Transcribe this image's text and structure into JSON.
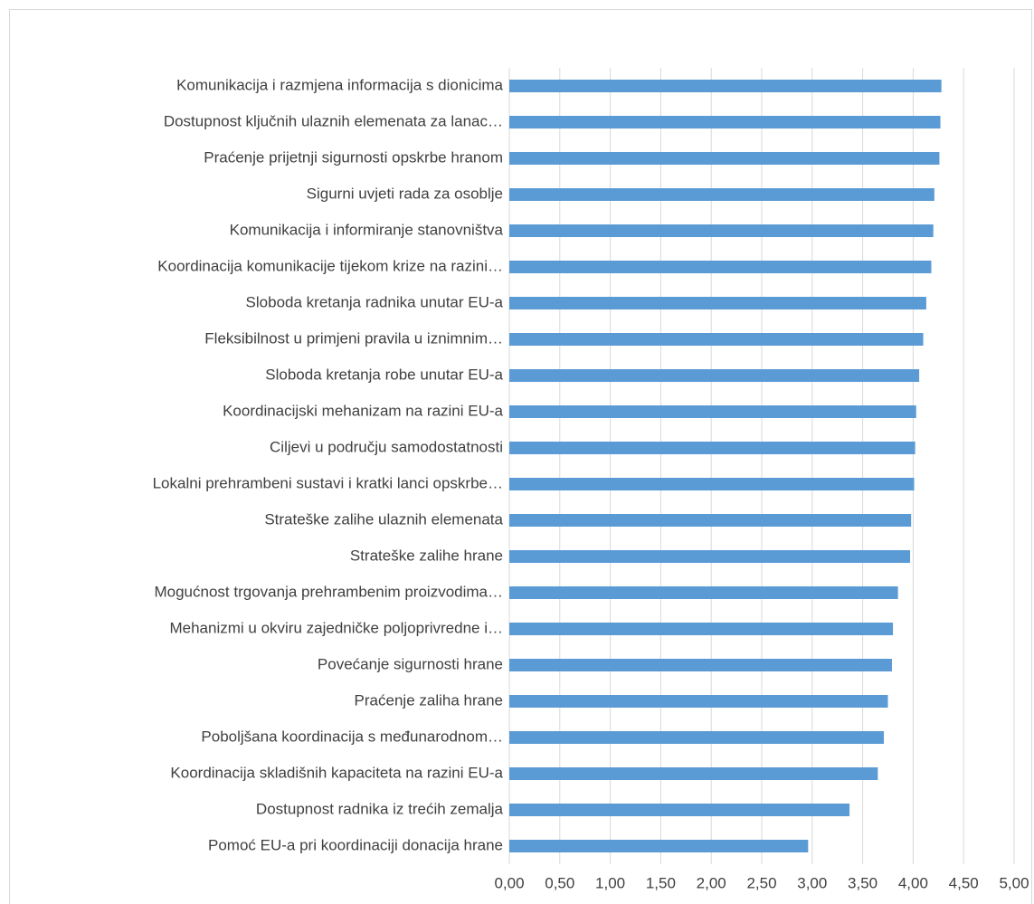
{
  "chart_data": {
    "type": "bar",
    "orientation": "horizontal",
    "categories": [
      "Komunikacija i razmjena informacija s dionicima",
      "Dostupnost ključnih ulaznih elemenata za lanac…",
      "Praćenje prijetnji sigurnosti opskrbe hranom",
      "Sigurni uvjeti rada za osoblje",
      "Komunikacija i informiranje stanovništva",
      "Koordinacija komunikacije tijekom krize na razini…",
      "Sloboda kretanja radnika unutar EU-a",
      "Fleksibilnost u primjeni pravila u iznimnim…",
      "Sloboda kretanja robe unutar EU-a",
      "Koordinacijski mehanizam na razini EU-a",
      "Ciljevi u području samodostatnosti",
      "Lokalni prehrambeni sustavi i kratki lanci opskrbe…",
      "Strateške zalihe ulaznih elemenata",
      "Strateške zalihe hrane",
      "Mogućnost trgovanja prehrambenim proizvodima…",
      "Mehanizmi u okviru zajedničke poljoprivredne i…",
      "Povećanje sigurnosti hrane",
      "Praćenje zaliha hrane",
      "Poboljšana koordinacija s međunarodnom…",
      "Koordinacija skladišnih kapaciteta na razini EU-a",
      "Dostupnost radnika iz trećih zemalja",
      "Pomoć EU-a pri koordinaciji donacija hrane"
    ],
    "values": [
      4.28,
      4.27,
      4.26,
      4.21,
      4.2,
      4.18,
      4.13,
      4.1,
      4.06,
      4.03,
      4.02,
      4.01,
      3.98,
      3.97,
      3.85,
      3.8,
      3.79,
      3.75,
      3.71,
      3.65,
      3.37,
      2.96
    ],
    "color": "#5b9bd5",
    "xlim": [
      0,
      5
    ],
    "xticks": [
      {
        "value": 0,
        "label": "0,00"
      },
      {
        "value": 0.5,
        "label": "0,50"
      },
      {
        "value": 1,
        "label": "1,00"
      },
      {
        "value": 1.5,
        "label": "1,50"
      },
      {
        "value": 2,
        "label": "2,00"
      },
      {
        "value": 2.5,
        "label": "2,50"
      },
      {
        "value": 3,
        "label": "3,00"
      },
      {
        "value": 3.5,
        "label": "3,50"
      },
      {
        "value": 4,
        "label": "4,00"
      },
      {
        "value": 4.5,
        "label": "4,50"
      },
      {
        "value": 5,
        "label": "5,00"
      }
    ],
    "grid": true
  }
}
